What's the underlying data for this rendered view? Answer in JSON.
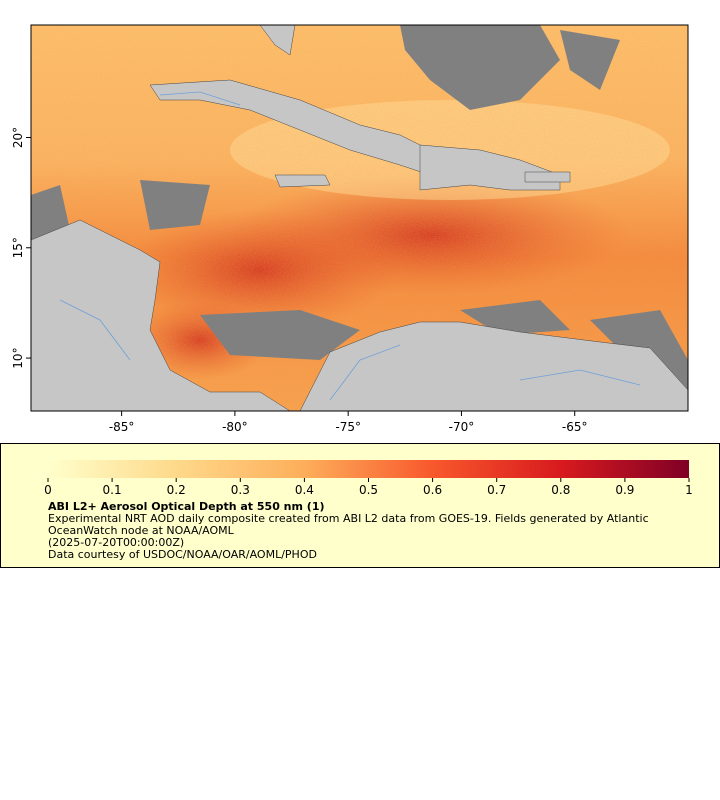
{
  "map": {
    "xlim": [
      -89,
      -60
    ],
    "ylim": [
      7.6,
      25.1
    ],
    "xticks": [
      {
        "value": -85,
        "label": "-85°"
      },
      {
        "value": -80,
        "label": "-80°"
      },
      {
        "value": -75,
        "label": "-75°"
      },
      {
        "value": -70,
        "label": "-70°"
      },
      {
        "value": -65,
        "label": "-65°"
      }
    ],
    "yticks": [
      {
        "value": 10,
        "label": "10°"
      },
      {
        "value": 15,
        "label": "15°"
      },
      {
        "value": 20,
        "label": "20°"
      }
    ]
  },
  "colorbar": {
    "lim": [
      0,
      1
    ],
    "ticks": [
      0,
      0.1,
      0.2,
      0.3,
      0.4,
      0.5,
      0.6,
      0.7,
      0.8,
      0.9,
      1
    ]
  },
  "legend": {
    "title": "ABI L2+ Aerosol Optical Depth at 550 nm (1)",
    "description": "Experimental NRT AOD daily composite created from ABI L2 data from GOES-19. Fields generated by Atlantic OceanWatch node at NOAA/AOML",
    "time": "(2025-07-20T00:00:00Z)",
    "credit": "Data courtesy of USDOC/NOAA/OAR/AOML/PHOD"
  }
}
